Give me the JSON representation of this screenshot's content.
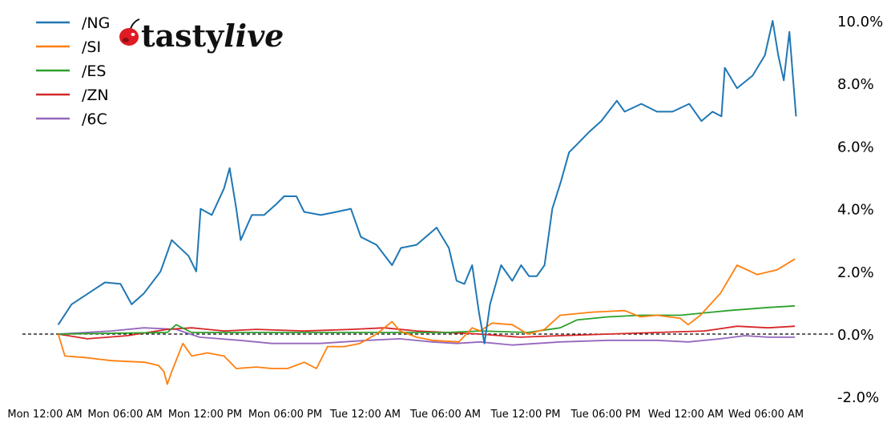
{
  "logo": {
    "text": "tastylive",
    "part1": "tasty",
    "part2": "live"
  },
  "chart_data": {
    "type": "line",
    "title": "",
    "xlabel": "",
    "ylabel": "",
    "ylim": [
      -2,
      10
    ],
    "y_ticks": [
      "10.0%",
      "8.0%",
      "6.0%",
      "4.0%",
      "2.0%",
      "0.0%",
      "-2.0%"
    ],
    "y_tick_values": [
      10,
      8,
      6,
      4,
      2,
      0,
      -2
    ],
    "y_axis_side": "right",
    "x_ticks": [
      "Mon 12:00 AM",
      "Mon 06:00 AM",
      "Mon 12:00 PM",
      "Mon 06:00 PM",
      "Tue 12:00 AM",
      "Tue 06:00 AM",
      "Tue 12:00 PM",
      "Tue 06:00 PM",
      "Wed 12:00 AM",
      "Wed 06:00 AM"
    ],
    "grid": false,
    "reference_line": {
      "y": 0,
      "style": "dashed",
      "color": "#000000"
    },
    "legend_position": "top-left",
    "series": [
      {
        "name": "/NG",
        "color": "#1f77b4",
        "points": [
          [
            "Mon 01:00 AM",
            0.3
          ],
          [
            "Mon 02:00 AM",
            0.95
          ],
          [
            "Mon 03:15 AM",
            1.3
          ],
          [
            "Mon 04:30 AM",
            1.65
          ],
          [
            "Mon 05:40 AM",
            1.6
          ],
          [
            "Mon 06:30 AM",
            0.95
          ],
          [
            "Mon 07:25 AM",
            1.3
          ],
          [
            "Mon 08:40 AM",
            2.0
          ],
          [
            "Mon 09:30 AM",
            3.0
          ],
          [
            "Mon 10:45 AM",
            2.5
          ],
          [
            "Mon 11:20 AM",
            2.0
          ],
          [
            "Mon 11:40 AM",
            4.0
          ],
          [
            "Mon 12:30 PM",
            3.8
          ],
          [
            "Mon 01:25 PM",
            4.65
          ],
          [
            "Mon 01:50 PM",
            5.3
          ],
          [
            "Mon 02:20 PM",
            4.0
          ],
          [
            "Mon 02:40 PM",
            3.0
          ],
          [
            "Mon 03:30 PM",
            3.8
          ],
          [
            "Mon 04:25 PM",
            3.8
          ],
          [
            "Mon 05:20 PM",
            4.15
          ],
          [
            "Mon 05:55 PM",
            4.4
          ],
          [
            "Mon 06:50 PM",
            4.4
          ],
          [
            "Mon 07:25 PM",
            3.9
          ],
          [
            "Mon 08:40 PM",
            3.8
          ],
          [
            "Mon 09:50 PM",
            3.9
          ],
          [
            "Mon 10:55 PM",
            4.0
          ],
          [
            "Mon 11:40 PM",
            3.1
          ],
          [
            "Tue 12:50 AM",
            2.85
          ],
          [
            "Tue 02:00 AM",
            2.2
          ],
          [
            "Tue 02:40 AM",
            2.75
          ],
          [
            "Tue 03:50 AM",
            2.85
          ],
          [
            "Tue 05:20 AM",
            3.4
          ],
          [
            "Tue 06:15 AM",
            2.75
          ],
          [
            "Tue 06:50 AM",
            1.7
          ],
          [
            "Tue 07:25 AM",
            1.6
          ],
          [
            "Tue 08:00 AM",
            2.2
          ],
          [
            "Tue 08:30 AM",
            0.7
          ],
          [
            "Tue 08:55 AM",
            -0.3
          ],
          [
            "Tue 09:20 AM",
            0.95
          ],
          [
            "Tue 10:10 AM",
            2.2
          ],
          [
            "Tue 11:00 AM",
            1.7
          ],
          [
            "Tue 11:40 AM",
            2.2
          ],
          [
            "Tue 12:15 PM",
            1.85
          ],
          [
            "Tue 12:50 PM",
            1.85
          ],
          [
            "Tue 01:25 PM",
            2.2
          ],
          [
            "Tue 02:00 PM",
            4.0
          ],
          [
            "Tue 02:40 PM",
            4.9
          ],
          [
            "Tue 03:15 PM",
            5.8
          ],
          [
            "Tue 03:50 PM",
            6.05
          ],
          [
            "Tue 04:45 PM",
            6.45
          ],
          [
            "Tue 05:40 PM",
            6.8
          ],
          [
            "Tue 06:50 PM",
            7.45
          ],
          [
            "Tue 07:25 PM",
            7.1
          ],
          [
            "Tue 08:40 PM",
            7.35
          ],
          [
            "Tue 09:50 PM",
            7.1
          ],
          [
            "Tue 11:00 PM",
            7.1
          ],
          [
            "Wed 12:15 AM",
            7.35
          ],
          [
            "Wed 01:10 AM",
            6.8
          ],
          [
            "Wed 02:00 AM",
            7.1
          ],
          [
            "Wed 02:40 AM",
            6.95
          ],
          [
            "Wed 02:55 AM",
            8.5
          ],
          [
            "Wed 03:50 AM",
            7.85
          ],
          [
            "Wed 05:00 AM",
            8.25
          ],
          [
            "Wed 05:55 AM",
            8.9
          ],
          [
            "Wed 06:30 AM",
            10.0
          ],
          [
            "Wed 06:55 AM",
            8.9
          ],
          [
            "Wed 07:20 AM",
            8.1
          ],
          [
            "Wed 07:45 AM",
            9.65
          ],
          [
            "Wed 08:15 AM",
            6.95
          ]
        ]
      },
      {
        "name": "/SI",
        "color": "#ff7f0e",
        "points": [
          [
            "Mon 01:00 AM",
            0
          ],
          [
            "Mon 01:30 AM",
            -0.7
          ],
          [
            "Mon 03:00 AM",
            -0.75
          ],
          [
            "Mon 05:00 AM",
            -0.85
          ],
          [
            "Mon 07:30 AM",
            -0.9
          ],
          [
            "Mon 08:30 AM",
            -1.0
          ],
          [
            "Mon 08:55 AM",
            -1.2
          ],
          [
            "Mon 09:10 AM",
            -1.6
          ],
          [
            "Mon 09:30 AM",
            -1.2
          ],
          [
            "Mon 10:20 AM",
            -0.3
          ],
          [
            "Mon 11:00 AM",
            -0.7
          ],
          [
            "Mon 12:10 PM",
            -0.6
          ],
          [
            "Mon 01:25 PM",
            -0.7
          ],
          [
            "Mon 02:20 PM",
            -1.1
          ],
          [
            "Mon 03:50 PM",
            -1.05
          ],
          [
            "Mon 05:00 PM",
            -1.1
          ],
          [
            "Mon 06:10 PM",
            -1.1
          ],
          [
            "Mon 07:25 PM",
            -0.9
          ],
          [
            "Mon 08:20 PM",
            -1.1
          ],
          [
            "Mon 09:10 PM",
            -0.4
          ],
          [
            "Mon 10:25 PM",
            -0.4
          ],
          [
            "Mon 11:35 PM",
            -0.3
          ],
          [
            "Tue 12:50 AM",
            0
          ],
          [
            "Tue 02:00 AM",
            0.4
          ],
          [
            "Tue 02:35 AM",
            0.1
          ],
          [
            "Tue 03:50 AM",
            -0.1
          ],
          [
            "Tue 05:00 AM",
            -0.2
          ],
          [
            "Tue 07:00 AM",
            -0.25
          ],
          [
            "Tue 08:00 AM",
            0.2
          ],
          [
            "Tue 08:35 AM",
            0.1
          ],
          [
            "Tue 09:30 AM",
            0.35
          ],
          [
            "Tue 11:00 AM",
            0.3
          ],
          [
            "Tue 12:10 PM",
            0
          ],
          [
            "Tue 01:25 PM",
            0.15
          ],
          [
            "Tue 02:35 PM",
            0.6
          ],
          [
            "Tue 05:00 PM",
            0.7
          ],
          [
            "Tue 07:25 PM",
            0.75
          ],
          [
            "Tue 08:35 PM",
            0.55
          ],
          [
            "Tue 09:50 PM",
            0.6
          ],
          [
            "Tue 11:35 PM",
            0.5
          ],
          [
            "Wed 12:10 AM",
            0.3
          ],
          [
            "Wed 01:05 AM",
            0.6
          ],
          [
            "Wed 02:35 AM",
            1.3
          ],
          [
            "Wed 03:50 AM",
            2.2
          ],
          [
            "Wed 05:20 AM",
            1.9
          ],
          [
            "Wed 06:50 AM",
            2.05
          ],
          [
            "Wed 08:10 AM",
            2.4
          ]
        ]
      },
      {
        "name": "/ES",
        "color": "#2ca02c",
        "points": [
          [
            "Mon 01:00 AM",
            0
          ],
          [
            "Mon 09:10 AM",
            0.05
          ],
          [
            "Mon 09:50 AM",
            0.3
          ],
          [
            "Mon 11:00 AM",
            0.05
          ],
          [
            "Tue 06:10 AM",
            0.05
          ],
          [
            "Tue 08:35 AM",
            0.1
          ],
          [
            "Tue 12:10 PM",
            0.05
          ],
          [
            "Tue 02:35 PM",
            0.2
          ],
          [
            "Tue 03:50 PM",
            0.45
          ],
          [
            "Tue 06:10 PM",
            0.55
          ],
          [
            "Tue 08:35 PM",
            0.6
          ],
          [
            "Tue 11:35 PM",
            0.6
          ],
          [
            "Wed 03:10 AM",
            0.75
          ],
          [
            "Wed 06:10 AM",
            0.85
          ],
          [
            "Wed 08:10 AM",
            0.9
          ]
        ]
      },
      {
        "name": "/ZN",
        "color": "#d62728",
        "points": [
          [
            "Mon 01:00 AM",
            0
          ],
          [
            "Mon 03:10 AM",
            -0.15
          ],
          [
            "Mon 06:10 AM",
            -0.05
          ],
          [
            "Mon 09:10 AM",
            0.15
          ],
          [
            "Mon 11:00 AM",
            0.2
          ],
          [
            "Mon 01:25 PM",
            0.1
          ],
          [
            "Mon 03:50 PM",
            0.15
          ],
          [
            "Mon 07:25 PM",
            0.1
          ],
          [
            "Mon 11:00 PM",
            0.15
          ],
          [
            "Tue 01:25 AM",
            0.2
          ],
          [
            "Tue 03:50 AM",
            0.1
          ],
          [
            "Tue 08:35 AM",
            0
          ],
          [
            "Tue 11:35 AM",
            -0.1
          ],
          [
            "Tue 02:35 PM",
            -0.05
          ],
          [
            "Tue 06:10 PM",
            0
          ],
          [
            "Tue 09:50 PM",
            0.05
          ],
          [
            "Wed 01:25 AM",
            0.1
          ],
          [
            "Wed 03:50 AM",
            0.25
          ],
          [
            "Wed 06:10 AM",
            0.2
          ],
          [
            "Wed 08:10 AM",
            0.25
          ]
        ]
      },
      {
        "name": "/6C",
        "color": "#9467bd",
        "points": [
          [
            "Mon 01:00 AM",
            0
          ],
          [
            "Mon 05:00 AM",
            0.1
          ],
          [
            "Mon 07:25 AM",
            0.2
          ],
          [
            "Mon 09:50 AM",
            0.15
          ],
          [
            "Mon 11:35 AM",
            -0.1
          ],
          [
            "Mon 02:35 PM",
            -0.2
          ],
          [
            "Mon 05:00 PM",
            -0.3
          ],
          [
            "Mon 08:35 PM",
            -0.3
          ],
          [
            "Tue 12:10 AM",
            -0.2
          ],
          [
            "Tue 02:35 AM",
            -0.15
          ],
          [
            "Tue 05:00 AM",
            -0.25
          ],
          [
            "Tue 06:50 AM",
            -0.3
          ],
          [
            "Tue 08:35 AM",
            -0.25
          ],
          [
            "Tue 11:00 AM",
            -0.35
          ],
          [
            "Tue 02:35 PM",
            -0.25
          ],
          [
            "Tue 06:10 PM",
            -0.2
          ],
          [
            "Tue 09:50 PM",
            -0.2
          ],
          [
            "Wed 12:10 AM",
            -0.25
          ],
          [
            "Wed 02:35 AM",
            -0.15
          ],
          [
            "Wed 04:25 AM",
            -0.05
          ],
          [
            "Wed 06:10 AM",
            -0.1
          ],
          [
            "Wed 08:10 AM",
            -0.1
          ]
        ]
      }
    ]
  }
}
